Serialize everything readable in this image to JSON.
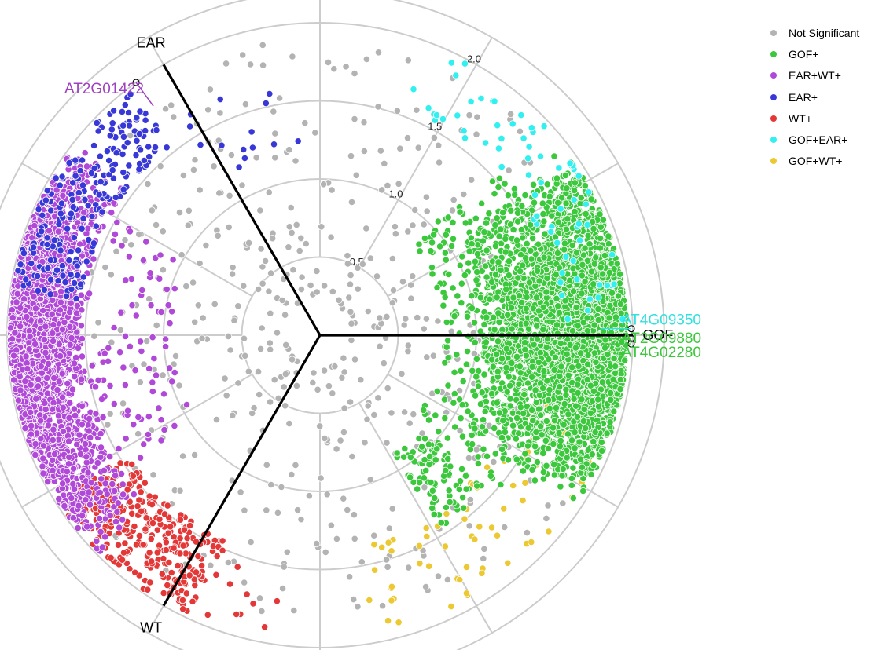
{
  "chart_data": {
    "type": "scatter",
    "subtype": "polar-triangle (volcano3D radial plot)",
    "axes": [
      {
        "label": "GOF",
        "angle_deg": 0
      },
      {
        "label": "EAR",
        "angle_deg": 120
      },
      {
        "label": "WT",
        "angle_deg": 240
      }
    ],
    "radial_range": [
      0,
      2.2
    ],
    "radial_ticks": [
      0.5,
      1.0,
      1.5,
      2.0
    ],
    "radial_tick_labels": [
      "0.5",
      "1.0",
      "1.5",
      "2.0"
    ],
    "grid": true,
    "legend_position": "top-right",
    "series": [
      {
        "name": "Not Significant",
        "color": "#b3b3b3"
      },
      {
        "name": "GOF+",
        "color": "#3cc83c"
      },
      {
        "name": "EAR+WT+",
        "color": "#b048d8"
      },
      {
        "name": "EAR+",
        "color": "#3838d8"
      },
      {
        "name": "WT+",
        "color": "#e43838"
      },
      {
        "name": "GOF+EAR+",
        "color": "#32f0f0"
      },
      {
        "name": "GOF+WT+",
        "color": "#ecc832"
      }
    ],
    "point_clusters": [
      {
        "series": "GOF+",
        "r_min": 1.0,
        "r_max": 1.96,
        "a_min": -35,
        "a_max": 38,
        "n": 3200,
        "shape": "dense"
      },
      {
        "series": "GOF+",
        "r_min": 0.8,
        "r_max": 1.55,
        "a_min": -40,
        "a_max": 45,
        "n": 260,
        "shape": "sparse"
      },
      {
        "series": "GOF+",
        "r_min": 0.9,
        "r_max": 1.45,
        "a_min": -58,
        "a_max": -42,
        "n": 90,
        "shape": "sparse"
      },
      {
        "series": "EAR+WT+",
        "r_min": 1.5,
        "r_max": 1.98,
        "a_min": 140,
        "a_max": 225,
        "n": 2400,
        "shape": "dense"
      },
      {
        "series": "EAR+WT+",
        "r_min": 0.95,
        "r_max": 1.5,
        "a_min": 150,
        "a_max": 215,
        "n": 90,
        "shape": "sparse"
      },
      {
        "series": "EAR+",
        "r_min": 1.55,
        "r_max": 1.98,
        "a_min": 128,
        "a_max": 172,
        "n": 220,
        "shape": "sparse"
      },
      {
        "series": "EAR+",
        "r_min": 1.1,
        "r_max": 1.65,
        "a_min": 95,
        "a_max": 125,
        "n": 14,
        "shape": "sparse"
      },
      {
        "series": "WT+",
        "r_min": 1.45,
        "r_max": 1.98,
        "a_min": 212,
        "a_max": 245,
        "n": 320,
        "shape": "sparse"
      },
      {
        "series": "WT+",
        "r_min": 1.5,
        "r_max": 1.95,
        "a_min": 245,
        "a_max": 262,
        "n": 12,
        "shape": "sparse"
      },
      {
        "series": "GOF+EAR+",
        "r_min": 1.55,
        "r_max": 1.97,
        "a_min": 2,
        "a_max": 72,
        "n": 70,
        "shape": "sparse"
      },
      {
        "series": "GOF+WT+",
        "r_min": 1.35,
        "r_max": 1.95,
        "a_min": -80,
        "a_max": -12,
        "n": 70,
        "shape": "sparse"
      },
      {
        "series": "Not Significant",
        "r_min": 0.2,
        "r_max": 1.9,
        "a_min": -180,
        "a_max": 180,
        "n": 520,
        "shape": "sparse"
      }
    ],
    "annotations": [
      {
        "label": "AT2G01422",
        "color": "#a040c0",
        "r": 2.0,
        "angle_deg": 126
      },
      {
        "label": "AT4G09350",
        "color": "#32e0e0",
        "r": 1.99,
        "angle_deg": 1.2
      },
      {
        "label": "AT2G09880",
        "color": "#3cc83c",
        "r": 1.99,
        "angle_deg": -0.6
      },
      {
        "label": "AT4G02280",
        "color": "#3cc83c",
        "r": 1.99,
        "angle_deg": -1.6
      }
    ]
  }
}
